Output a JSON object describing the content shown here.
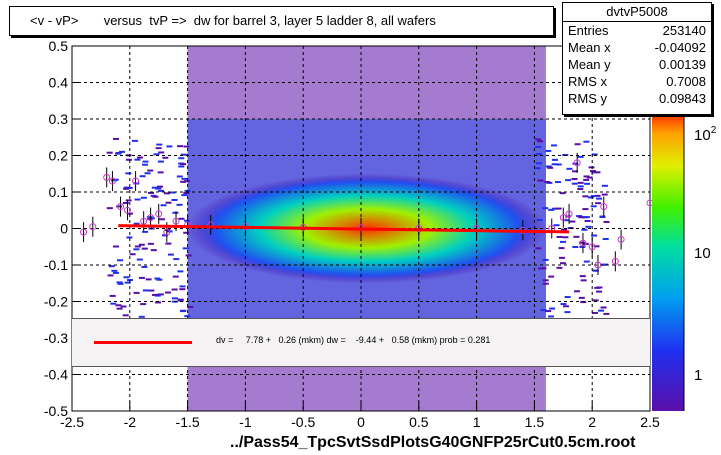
{
  "chart_data": {
    "type": "scatter",
    "title": "<v - vP>       versus  tvP =>  dw for barrel 3, layer 5 ladder 8, all wafers",
    "xlabel": "../Pass54_TpcSvtSsdPlotsG40GNFP25rCut0.5cm.root",
    "ylabel": "",
    "xlim": [
      -2.5,
      2.5
    ],
    "ylim": [
      -0.5,
      0.5
    ],
    "x_ticks": [
      "-2.5",
      "-2",
      "-1.5",
      "-1",
      "-0.5",
      "0",
      "0.5",
      "1",
      "1.5",
      "2",
      "2.5"
    ],
    "x_tick_values": [
      -2.5,
      -2,
      -1.5,
      -1,
      -0.5,
      0,
      0.5,
      1,
      1.5,
      2,
      2.5
    ],
    "y_ticks": [
      "-0.5",
      "-0.4",
      "-0.3",
      "-0.2",
      "-0.1",
      "0",
      "0.1",
      "0.2",
      "0.3",
      "0.4",
      "0.5"
    ],
    "y_tick_values": [
      -0.5,
      -0.4,
      -0.3,
      -0.2,
      -0.1,
      0,
      0.1,
      0.2,
      0.3,
      0.4,
      0.5
    ],
    "grid": true,
    "colorbar": {
      "scale": "log",
      "labels": [
        "10",
        "1"
      ],
      "sup_label": {
        "base": "10",
        "exp": "2"
      }
    },
    "profile_points": [
      {
        "x": -2.4,
        "y": -0.01
      },
      {
        "x": -2.32,
        "y": 0.005
      },
      {
        "x": -2.2,
        "y": 0.14
      },
      {
        "x": -2.15,
        "y": 0.13
      },
      {
        "x": -2.08,
        "y": 0.06
      },
      {
        "x": -2.02,
        "y": 0.05
      },
      {
        "x": -1.95,
        "y": 0.13
      },
      {
        "x": -1.88,
        "y": 0.02
      },
      {
        "x": -1.82,
        "y": 0.03
      },
      {
        "x": -1.75,
        "y": 0.04
      },
      {
        "x": -1.68,
        "y": -0.01
      },
      {
        "x": -1.6,
        "y": 0.02
      },
      {
        "x": -1.5,
        "y": 0.01
      },
      {
        "x": -1.3,
        "y": 0.01
      },
      {
        "x": -1.0,
        "y": 0.005
      },
      {
        "x": -0.5,
        "y": 0.003
      },
      {
        "x": 0.0,
        "y": 0.002
      },
      {
        "x": 0.5,
        "y": 0.0
      },
      {
        "x": 1.0,
        "y": 0.0
      },
      {
        "x": 1.4,
        "y": -0.005
      },
      {
        "x": 1.65,
        "y": 0.0
      },
      {
        "x": 1.75,
        "y": 0.03
      },
      {
        "x": 1.8,
        "y": 0.04
      },
      {
        "x": 1.87,
        "y": 0.18
      },
      {
        "x": 1.92,
        "y": -0.04
      },
      {
        "x": 2.0,
        "y": -0.05
      },
      {
        "x": 2.05,
        "y": -0.1
      },
      {
        "x": 2.1,
        "y": 0.06
      },
      {
        "x": 2.2,
        "y": -0.09
      },
      {
        "x": 2.25,
        "y": -0.03
      },
      {
        "x": 2.5,
        "y": 0.07
      }
    ],
    "fit_line": {
      "x": [
        -2.1,
        1.8
      ],
      "y": [
        0.0078,
        -0.0094
      ]
    },
    "stats": {
      "name": "dvtvP5008",
      "entries": {
        "label": "Entries",
        "value": "253140"
      },
      "mean_x": {
        "label": "Mean x",
        "value": "-0.04092"
      },
      "mean_y": {
        "label": "Mean y",
        "value": "0.00139"
      },
      "rms_x": {
        "label": "RMS x",
        "value": "0.7008"
      },
      "rms_y": {
        "label": "RMS y",
        "value": "0.09843"
      }
    },
    "fit_text": "dv =     7.78 +   0.26 (mkm) dw =    -9.44 +   0.58 (mkm) prob = 0.281"
  },
  "colors": {
    "fit_line": "#ff0000",
    "profile_marker": "#cc33cc",
    "colormap": [
      "#5a0ea8",
      "#2030f0",
      "#00a0f0",
      "#00e0a0",
      "#40f000",
      "#e0f000",
      "#ffa000",
      "#ff2000"
    ]
  }
}
